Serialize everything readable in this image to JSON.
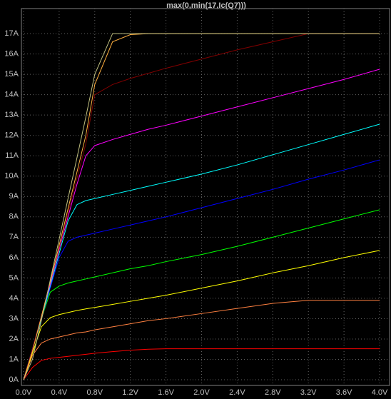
{
  "chart_data": {
    "type": "line",
    "title": "max(0,min(17,Ic(Q7)))",
    "title_color": "#ff0000",
    "x": [
      0,
      0.1,
      0.2,
      0.3,
      0.4,
      0.5,
      0.6,
      0.7,
      0.8,
      1.0,
      1.2,
      1.4,
      1.6,
      2.0,
      2.4,
      2.8,
      3.2,
      3.6,
      4.0
    ],
    "series": [
      {
        "color": "#ff0000",
        "values": [
          0,
          0.6,
          0.95,
          1.05,
          1.1,
          1.15,
          1.2,
          1.25,
          1.3,
          1.38,
          1.45,
          1.5,
          1.52,
          1.52,
          1.52,
          1.52,
          1.52,
          1.52,
          1.52
        ]
      },
      {
        "color": "#ff8040",
        "values": [
          0,
          1.2,
          1.8,
          2.0,
          2.1,
          2.2,
          2.3,
          2.35,
          2.45,
          2.6,
          2.75,
          2.9,
          3.0,
          3.25,
          3.5,
          3.75,
          3.9,
          3.9,
          3.9
        ]
      },
      {
        "color": "#ffff00",
        "values": [
          0,
          1.3,
          2.6,
          3.05,
          3.2,
          3.3,
          3.4,
          3.48,
          3.55,
          3.7,
          3.85,
          4.0,
          4.15,
          4.5,
          4.85,
          5.25,
          5.6,
          6.0,
          6.35
        ]
      },
      {
        "color": "#00ff00",
        "values": [
          0,
          1.5,
          3.0,
          4.3,
          4.6,
          4.75,
          4.85,
          4.95,
          5.05,
          5.25,
          5.45,
          5.6,
          5.8,
          6.15,
          6.55,
          7.0,
          7.45,
          7.9,
          8.35
        ]
      },
      {
        "color": "#0000ff",
        "values": [
          0,
          1.5,
          3.0,
          4.5,
          6.0,
          6.8,
          7.0,
          7.1,
          7.2,
          7.4,
          7.6,
          7.8,
          8.0,
          8.45,
          8.9,
          9.35,
          9.85,
          10.3,
          10.8
        ]
      },
      {
        "color": "#00ffff",
        "values": [
          0,
          1.5,
          3.0,
          4.6,
          6.2,
          7.8,
          8.6,
          8.8,
          8.9,
          9.1,
          9.3,
          9.5,
          9.7,
          10.1,
          10.55,
          11.05,
          11.55,
          12.05,
          12.55
        ]
      },
      {
        "color": "#ff00ff",
        "values": [
          0,
          1.5,
          3.1,
          4.7,
          6.4,
          8.0,
          9.6,
          11.0,
          11.5,
          11.8,
          12.05,
          12.3,
          12.5,
          12.95,
          13.4,
          13.85,
          14.3,
          14.75,
          15.25
        ]
      },
      {
        "color": "#800000",
        "values": [
          0,
          1.5,
          3.1,
          4.8,
          6.5,
          8.2,
          9.9,
          11.6,
          14.0,
          14.5,
          14.8,
          15.05,
          15.3,
          15.75,
          16.2,
          16.6,
          17,
          17,
          17
        ]
      },
      {
        "color": "#ffb040",
        "values": [
          0,
          1.4,
          3.1,
          4.8,
          6.6,
          8.4,
          10.2,
          12.0,
          14.5,
          16.6,
          16.95,
          17,
          17,
          17,
          17,
          17,
          17,
          17,
          17
        ]
      },
      {
        "color": "#c0c080",
        "values": [
          0,
          1.0,
          2.9,
          4.9,
          6.9,
          8.9,
          10.9,
          12.9,
          15.0,
          17,
          17,
          17,
          17,
          17,
          17,
          17,
          17,
          17,
          17
        ]
      }
    ],
    "xlim": [
      -0.024,
      4.112
    ],
    "ylim": [
      -0.28,
      18.23
    ],
    "xticks": [
      {
        "value": 0,
        "label": "0.0V"
      },
      {
        "value": 0.4,
        "label": "0.4V"
      },
      {
        "value": 0.8,
        "label": "0.8V"
      },
      {
        "value": 1.2,
        "label": "1.2V"
      },
      {
        "value": 1.6,
        "label": "1.6V"
      },
      {
        "value": 2.0,
        "label": "2.0V"
      },
      {
        "value": 2.4,
        "label": "2.4V"
      },
      {
        "value": 2.8,
        "label": "2.8V"
      },
      {
        "value": 3.2,
        "label": "3.2V"
      },
      {
        "value": 3.6,
        "label": "3.6V"
      },
      {
        "value": 4.0,
        "label": "4.0V"
      }
    ],
    "yticks": [
      {
        "value": 0,
        "label": "0A"
      },
      {
        "value": 1,
        "label": "1A"
      },
      {
        "value": 2,
        "label": "2A"
      },
      {
        "value": 3,
        "label": "3A"
      },
      {
        "value": 4,
        "label": "4A"
      },
      {
        "value": 5,
        "label": "5A"
      },
      {
        "value": 6,
        "label": "6A"
      },
      {
        "value": 7,
        "label": "7A"
      },
      {
        "value": 8,
        "label": "8A"
      },
      {
        "value": 9,
        "label": "9A"
      },
      {
        "value": 10,
        "label": "10A"
      },
      {
        "value": 11,
        "label": "11A"
      },
      {
        "value": 12,
        "label": "12A"
      },
      {
        "value": 13,
        "label": "13A"
      },
      {
        "value": 14,
        "label": "14A"
      },
      {
        "value": 15,
        "label": "15A"
      },
      {
        "value": 16,
        "label": "16A"
      },
      {
        "value": 17,
        "label": "17A"
      }
    ],
    "grid": true
  }
}
